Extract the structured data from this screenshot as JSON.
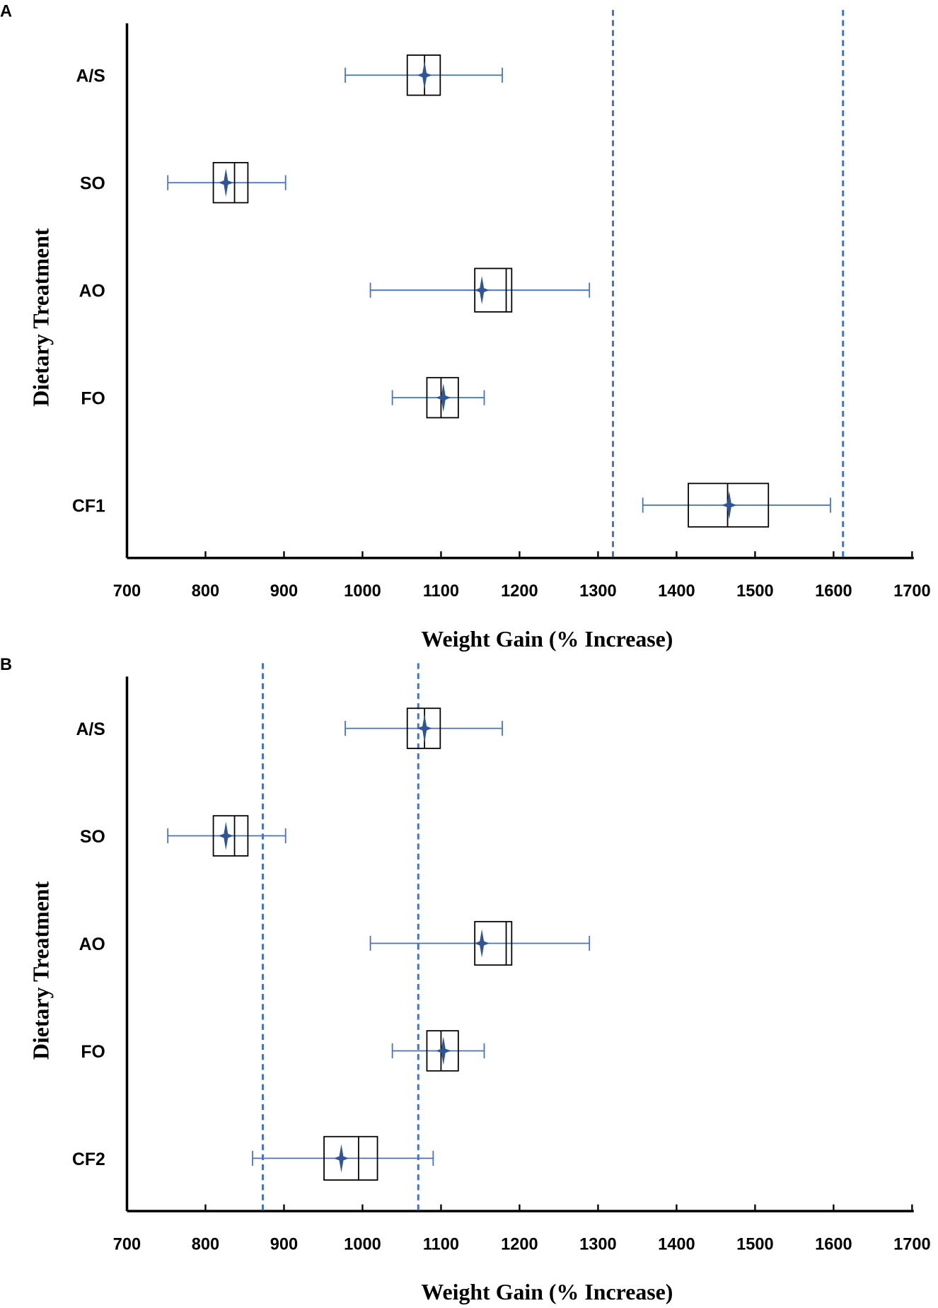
{
  "chart_data": [
    {
      "panel": "A",
      "type": "boxplot",
      "xlabel": "Weight Gain (% Increase)",
      "ylabel": "Dietary Treatment",
      "xlim": [
        700,
        1700
      ],
      "xticks": [
        700,
        800,
        900,
        1000,
        1100,
        1200,
        1300,
        1400,
        1500,
        1600,
        1700
      ],
      "reference_lines": [
        1319,
        1612
      ],
      "series": [
        {
          "name": "A/S",
          "whisker_low": 978,
          "q1": 1057,
          "median": 1079,
          "q3": 1099,
          "whisker_high": 1178,
          "mean": 1079
        },
        {
          "name": "SO",
          "whisker_low": 752,
          "q1": 810,
          "median": 837,
          "q3": 854,
          "whisker_high": 902,
          "mean": 826
        },
        {
          "name": "AO",
          "whisker_low": 1010,
          "q1": 1143,
          "median": 1183,
          "q3": 1190,
          "whisker_high": 1289,
          "mean": 1152
        },
        {
          "name": "FO",
          "whisker_low": 1038,
          "q1": 1082,
          "median": 1100,
          "q3": 1122,
          "whisker_high": 1155,
          "mean": 1103
        },
        {
          "name": "CF1",
          "whisker_low": 1357,
          "q1": 1415,
          "median": 1465,
          "q3": 1517,
          "whisker_high": 1596,
          "mean": 1467
        }
      ]
    },
    {
      "panel": "B",
      "type": "boxplot",
      "xlabel": "Weight Gain (% Increase)",
      "ylabel": "Dietary Treatment",
      "xlim": [
        700,
        1700
      ],
      "xticks": [
        700,
        800,
        900,
        1000,
        1100,
        1200,
        1300,
        1400,
        1500,
        1600,
        1700
      ],
      "reference_lines": [
        873,
        1071
      ],
      "series": [
        {
          "name": "A/S",
          "whisker_low": 978,
          "q1": 1057,
          "median": 1079,
          "q3": 1099,
          "whisker_high": 1178,
          "mean": 1079
        },
        {
          "name": "SO",
          "whisker_low": 752,
          "q1": 810,
          "median": 837,
          "q3": 854,
          "whisker_high": 902,
          "mean": 826
        },
        {
          "name": "AO",
          "whisker_low": 1010,
          "q1": 1143,
          "median": 1183,
          "q3": 1190,
          "whisker_high": 1289,
          "mean": 1152
        },
        {
          "name": "FO",
          "whisker_low": 1038,
          "q1": 1082,
          "median": 1100,
          "q3": 1122,
          "whisker_high": 1155,
          "mean": 1103
        },
        {
          "name": "CF2",
          "whisker_low": 860,
          "q1": 951,
          "median": 995,
          "q3": 1019,
          "whisker_high": 1090,
          "mean": 973
        }
      ]
    }
  ],
  "colors": {
    "whisker": "#4472c4",
    "mean": "#2f5597",
    "ref": "#4472c4",
    "box": "#000000"
  }
}
